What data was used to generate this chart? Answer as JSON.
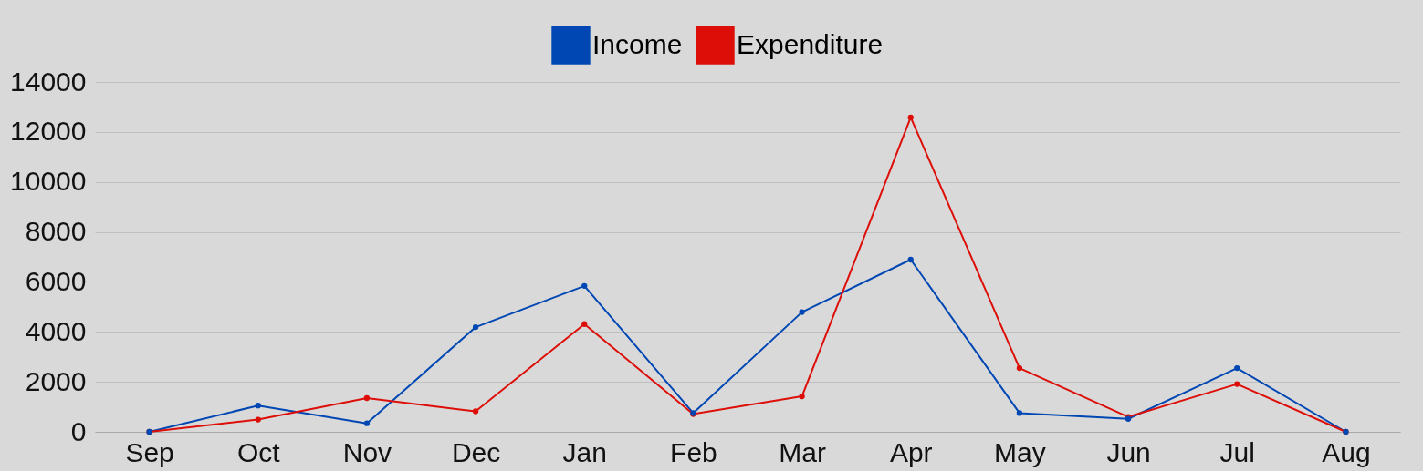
{
  "chart_data": {
    "type": "line",
    "categories": [
      "Sep",
      "Oct",
      "Nov",
      "Dec",
      "Jan",
      "Feb",
      "Mar",
      "Apr",
      "May",
      "Jun",
      "Jul",
      "Aug"
    ],
    "series": [
      {
        "name": "Income",
        "color": "#0047b3",
        "values": [
          0,
          1050,
          340,
          4190,
          5840,
          750,
          4790,
          6890,
          750,
          520,
          2550,
          0
        ]
      },
      {
        "name": "Expenditure",
        "color": "#dd0e08",
        "values": [
          0,
          490,
          1350,
          820,
          4310,
          710,
          1420,
          12580,
          2550,
          600,
          1910,
          0
        ]
      }
    ],
    "ylim": [
      0,
      14000
    ],
    "yticks": [
      0,
      2000,
      4000,
      6000,
      8000,
      10000,
      12000,
      14000
    ],
    "grid": "y",
    "legend": "top",
    "marker": "circle",
    "line_style": "solid"
  }
}
